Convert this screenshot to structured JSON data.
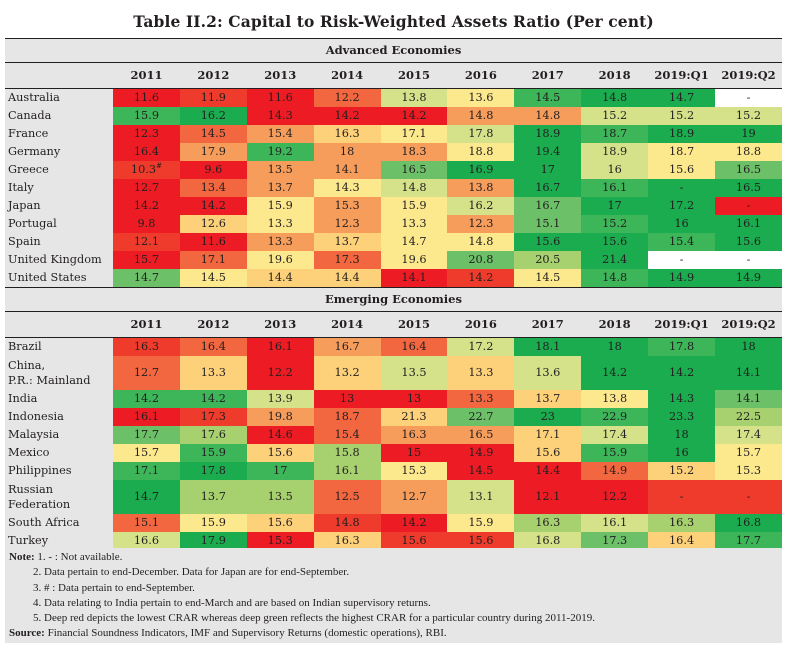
{
  "title": "Table II.2:  Capital to Risk-Weighted Assets Ratio (Per cent)",
  "columns": [
    "2011",
    "2012",
    "2013",
    "2014",
    "2015",
    "2016",
    "2017",
    "2018",
    "2019:Q1",
    "2019:Q2"
  ],
  "sections": [
    {
      "name": "Advanced Economies",
      "rows": [
        {
          "country": "Australia",
          "values": [
            "11.6",
            "11.9",
            "11.6",
            "12.2",
            "13.8",
            "13.6",
            "14.5",
            "14.8",
            "14.7",
            "-"
          ],
          "heat": [
            0,
            1,
            0,
            2,
            6,
            5,
            9,
            10,
            10,
            "w"
          ]
        },
        {
          "country": "Canada",
          "values": [
            "15.9",
            "16.2",
            "14.3",
            "14.2",
            "14.2",
            "14.8",
            "14.8",
            "15.2",
            "15.2",
            "15.2"
          ],
          "heat": [
            9,
            10,
            0,
            0,
            0,
            3,
            3,
            6,
            6,
            6
          ]
        },
        {
          "country": "France",
          "values": [
            "12.3",
            "14.5",
            "15.4",
            "16.3",
            "17.1",
            "17.8",
            "18.9",
            "18.7",
            "18.9",
            "19"
          ],
          "heat": [
            0,
            2,
            3,
            4,
            5,
            6,
            10,
            9,
            10,
            10
          ]
        },
        {
          "country": "Germany",
          "values": [
            "16.4",
            "17.9",
            "19.2",
            "18",
            "18.3",
            "18.8",
            "19.4",
            "18.9",
            "18.7",
            "18.8"
          ],
          "heat": [
            0,
            3,
            9,
            3,
            3,
            5,
            10,
            6,
            5,
            5
          ]
        },
        {
          "country": "Greece",
          "values": [
            "10.3#",
            "9.6",
            "13.5",
            "14.1",
            "16.5",
            "16.9",
            "17",
            "16",
            "15.6",
            "16.5"
          ],
          "heat": [
            1,
            0,
            3,
            3,
            8,
            10,
            10,
            6,
            5,
            8
          ]
        },
        {
          "country": "Italy",
          "values": [
            "12.7",
            "13.4",
            "13.7",
            "14.3",
            "14.8",
            "13.8",
            "16.7",
            "16.1",
            "-",
            "16.5"
          ],
          "heat": [
            0,
            2,
            3,
            5,
            6,
            3,
            10,
            9,
            10,
            10
          ]
        },
        {
          "country": "Japan",
          "values": [
            "14.2",
            "14.2",
            "15.9",
            "15.3",
            "15.9",
            "16.2",
            "16.7",
            "17",
            "17.2",
            "-"
          ],
          "heat": [
            0,
            0,
            5,
            3,
            5,
            6,
            8,
            10,
            10,
            0
          ]
        },
        {
          "country": "Portugal",
          "values": [
            "9.8",
            "12.6",
            "13.3",
            "12.3",
            "13.3",
            "12.3",
            "15.1",
            "15.2",
            "16",
            "16.1"
          ],
          "heat": [
            0,
            4,
            5,
            3,
            5,
            3,
            8,
            9,
            10,
            10
          ]
        },
        {
          "country": "Spain",
          "values": [
            "12.1",
            "11.6",
            "13.3",
            "13.7",
            "14.7",
            "14.8",
            "15.6",
            "15.6",
            "15.4",
            "15.6"
          ],
          "heat": [
            1,
            0,
            3,
            4,
            5,
            5,
            10,
            10,
            9,
            10
          ]
        },
        {
          "country": "United Kingdom",
          "values": [
            "15.7",
            "17.1",
            "19.6",
            "17.3",
            "19.6",
            "20.8",
            "20.5",
            "21.4",
            "-",
            "-"
          ],
          "heat": [
            0,
            2,
            5,
            2,
            5,
            8,
            7,
            10,
            "w",
            "w"
          ]
        },
        {
          "country": "United States",
          "values": [
            "14.7",
            "14.5",
            "14.4",
            "14.4",
            "14.1",
            "14.2",
            "14.5",
            "14.8",
            "14.9",
            "14.9"
          ],
          "heat": [
            8,
            5,
            4,
            4,
            0,
            1,
            5,
            9,
            10,
            10
          ]
        }
      ]
    },
    {
      "name": "Emerging Economies",
      "rows": [
        {
          "country": "Brazil",
          "values": [
            "16.3",
            "16.4",
            "16.1",
            "16.7",
            "16.4",
            "17.2",
            "18.1",
            "18",
            "17.8",
            "18"
          ],
          "heat": [
            1,
            2,
            0,
            3,
            2,
            6,
            10,
            10,
            9,
            10
          ]
        },
        {
          "country": "China, P.R.: Mainland",
          "values": [
            "12.7",
            "13.3",
            "12.2",
            "13.2",
            "13.5",
            "13.3",
            "13.6",
            "14.2",
            "14.2",
            "14.1"
          ],
          "heat": [
            2,
            4,
            0,
            4,
            6,
            4,
            6,
            10,
            10,
            10
          ],
          "two_line": true
        },
        {
          "country": "India",
          "values": [
            "14.2",
            "14.2",
            "13.9",
            "13",
            "13",
            "13.3",
            "13.7",
            "13.8",
            "14.3",
            "14.1"
          ],
          "heat": [
            9,
            9,
            6,
            0,
            0,
            2,
            4,
            5,
            10,
            8
          ]
        },
        {
          "country": "Indonesia",
          "values": [
            "16.1",
            "17.3",
            "19.8",
            "18.7",
            "21.3",
            "22.7",
            "23",
            "22.9",
            "23.3",
            "22.5"
          ],
          "heat": [
            0,
            1,
            3,
            2,
            4,
            8,
            10,
            9,
            10,
            7
          ]
        },
        {
          "country": "Malaysia",
          "values": [
            "17.7",
            "17.6",
            "14.6",
            "15.4",
            "16.3",
            "16.5",
            "17.1",
            "17.4",
            "18",
            "17.4"
          ],
          "heat": [
            8,
            7,
            0,
            2,
            3,
            3,
            4,
            6,
            10,
            6
          ]
        },
        {
          "country": "Mexico",
          "values": [
            "15.7",
            "15.9",
            "15.6",
            "15.8",
            "15",
            "14.9",
            "15.6",
            "15.9",
            "16",
            "15.7"
          ],
          "heat": [
            5,
            9,
            4,
            7,
            0,
            0,
            4,
            9,
            10,
            5
          ]
        },
        {
          "country": "Philippines",
          "values": [
            "17.1",
            "17.8",
            "17",
            "16.1",
            "15.3",
            "14.5",
            "14.4",
            "14.9",
            "15.2",
            "15.3"
          ],
          "heat": [
            9,
            10,
            9,
            7,
            5,
            0,
            0,
            2,
            4,
            5
          ]
        },
        {
          "country": "Russian Federation",
          "values": [
            "14.7",
            "13.7",
            "13.5",
            "12.5",
            "12.7",
            "13.1",
            "12.1",
            "12.2",
            "-",
            "-"
          ],
          "heat": [
            10,
            7,
            7,
            2,
            3,
            6,
            0,
            0,
            1,
            1
          ],
          "two_line": true
        },
        {
          "country": "South Africa",
          "values": [
            "15.1",
            "15.9",
            "15.6",
            "14.8",
            "14.2",
            "15.9",
            "16.3",
            "16.1",
            "16.3",
            "16.8"
          ],
          "heat": [
            2,
            5,
            4,
            1,
            0,
            5,
            7,
            6,
            7,
            10
          ]
        },
        {
          "country": "Turkey",
          "values": [
            "16.6",
            "17.9",
            "15.3",
            "16.3",
            "15.6",
            "15.6",
            "16.8",
            "17.3",
            "16.4",
            "17.7"
          ],
          "heat": [
            6,
            10,
            0,
            4,
            1,
            1,
            6,
            8,
            4,
            9
          ]
        }
      ]
    }
  ],
  "notes": {
    "note_label": "Note:",
    "items": [
      "1. - : Not available.",
      "2. Data pertain to end-December. Data for Japan are for end-September.",
      "3. # : Data pertain to end-September.",
      "4. Data relating to India pertain to end-March and are based on Indian supervisory returns.",
      "5. Deep red depicts the lowest CRAR whereas deep green reflects the highest CRAR for a particular country during 2011-2019."
    ],
    "source_label": "Source:",
    "source_text": "Financial Soundness Indicators, IMF and Supervisory Returns (domestic operations), RBI."
  }
}
